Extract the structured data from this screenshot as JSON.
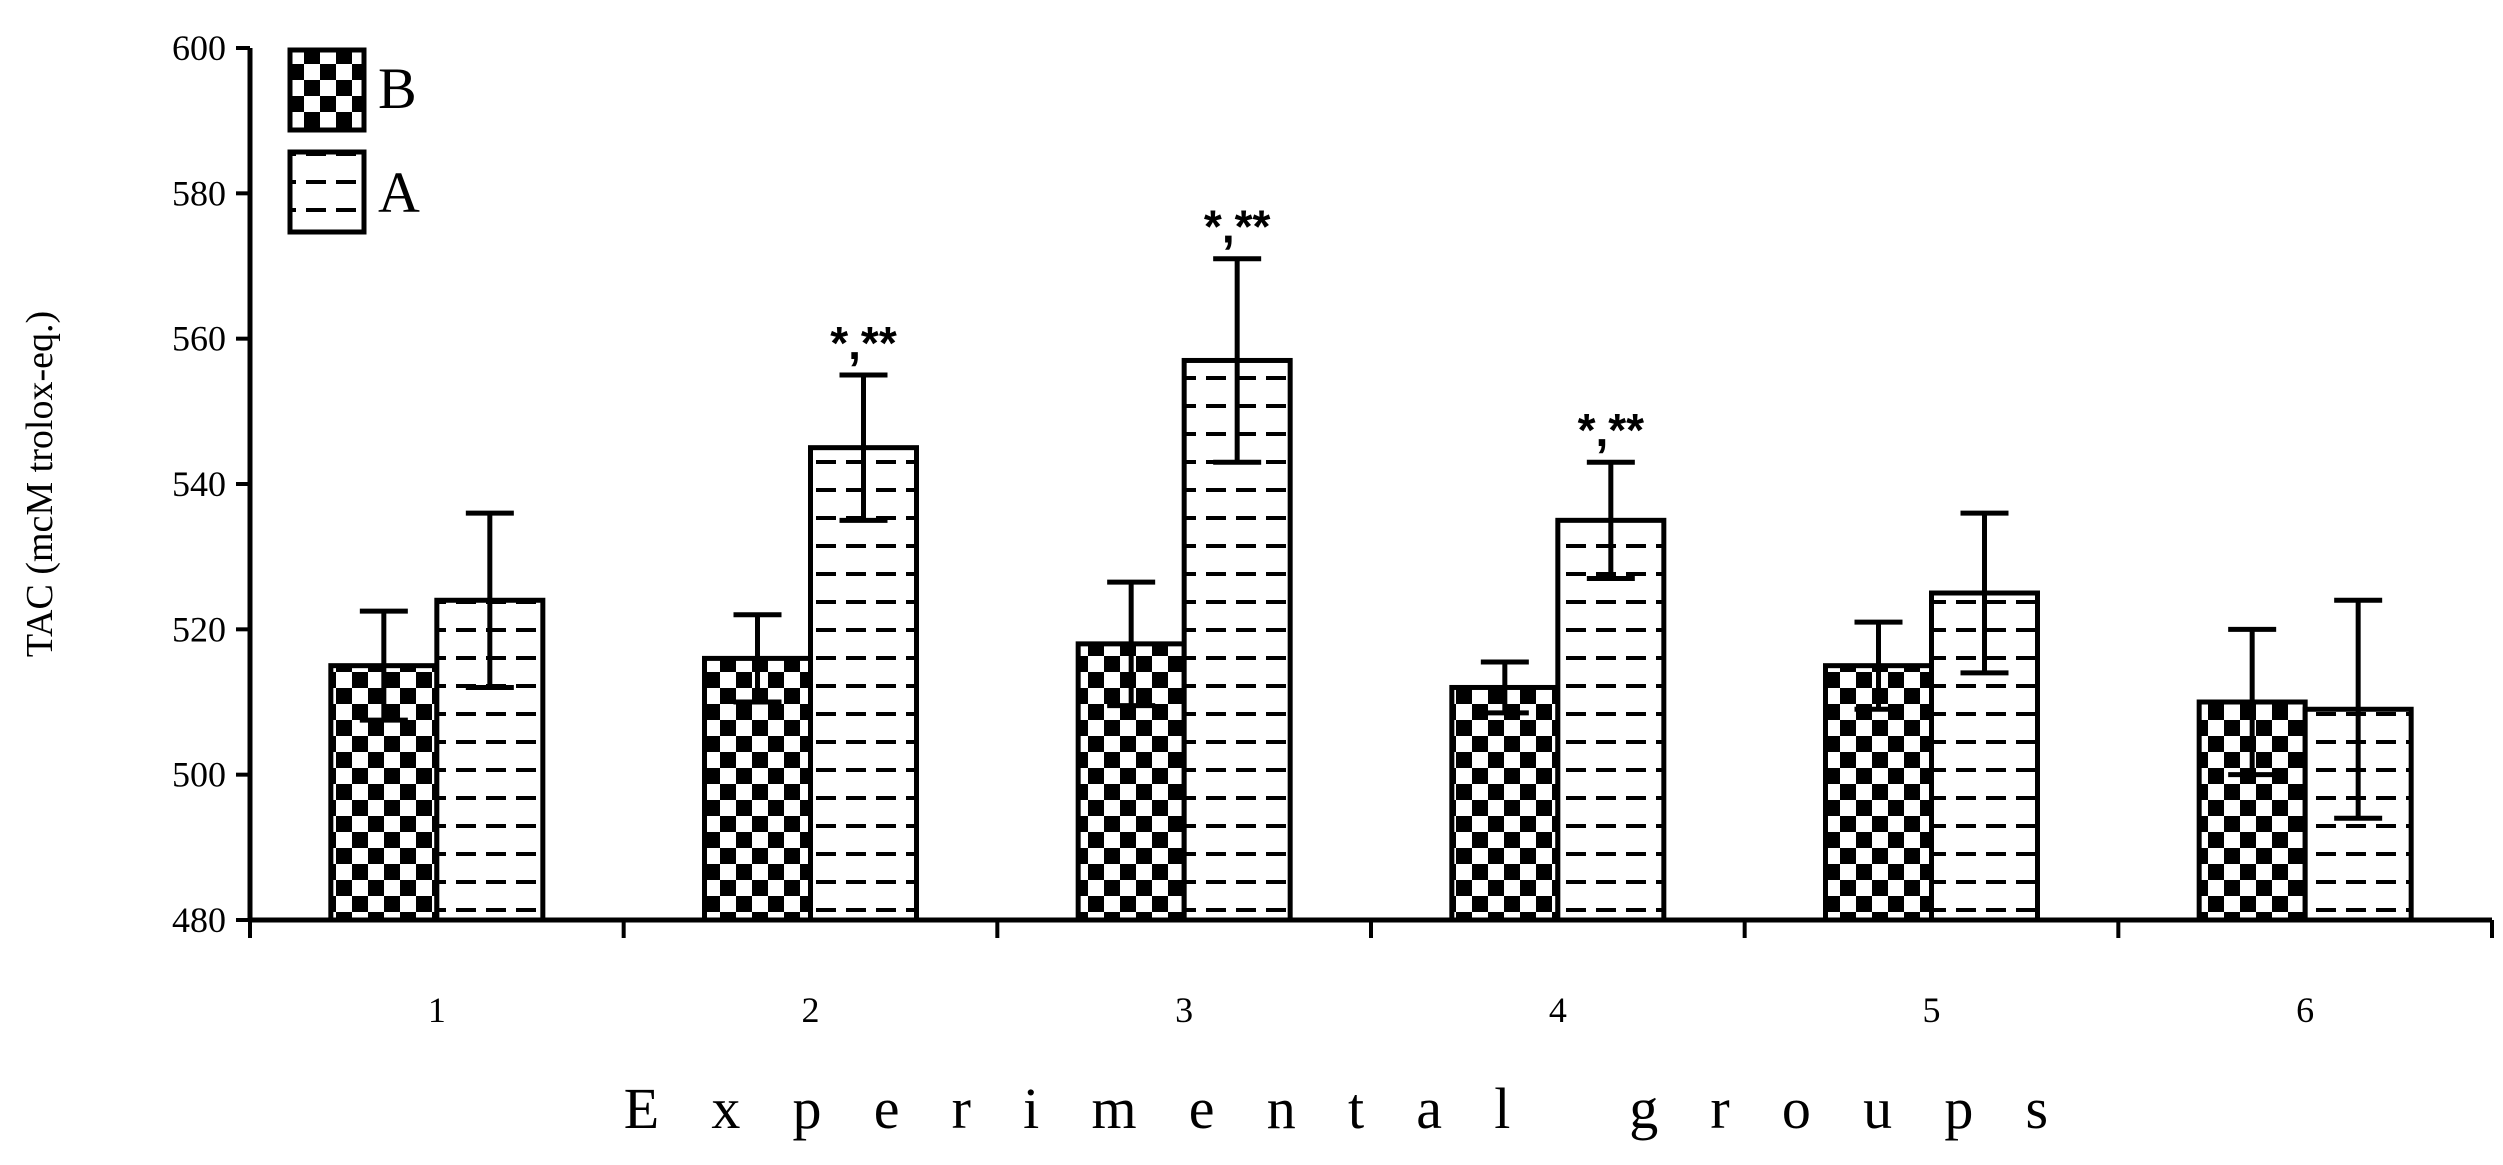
{
  "chart_data": {
    "type": "bar",
    "title": "",
    "xlabel": "Experimental groups",
    "ylabel": "TAC (mcM trolox-eq.)",
    "ylim": [
      480,
      600
    ],
    "yticks": [
      "480",
      "500",
      "520",
      "540",
      "560",
      "580",
      "600"
    ],
    "categories": [
      "1",
      "2",
      "3",
      "4",
      "5",
      "6"
    ],
    "series": [
      {
        "name": "B",
        "pattern": "checker",
        "values": [
          515,
          516,
          518,
          512,
          515,
          510
        ],
        "errors": [
          7.5,
          6,
          8.5,
          3.5,
          6,
          10
        ]
      },
      {
        "name": "A",
        "pattern": "dashes",
        "values": [
          524,
          545,
          557,
          535,
          525,
          509
        ],
        "errors": [
          12,
          10,
          14,
          8,
          11,
          15
        ]
      }
    ],
    "annotations": [
      {
        "category": "2",
        "series": "A",
        "text": "*,**"
      },
      {
        "category": "3",
        "series": "A",
        "text": "*,**"
      },
      {
        "category": "4",
        "series": "A",
        "text": "*,**"
      }
    ],
    "legend": {
      "position": "top-left"
    },
    "grid": false,
    "colors": {
      "bar_fill": "#ffffff",
      "bar_stroke": "#000000",
      "pattern_ink": "#000000"
    }
  }
}
